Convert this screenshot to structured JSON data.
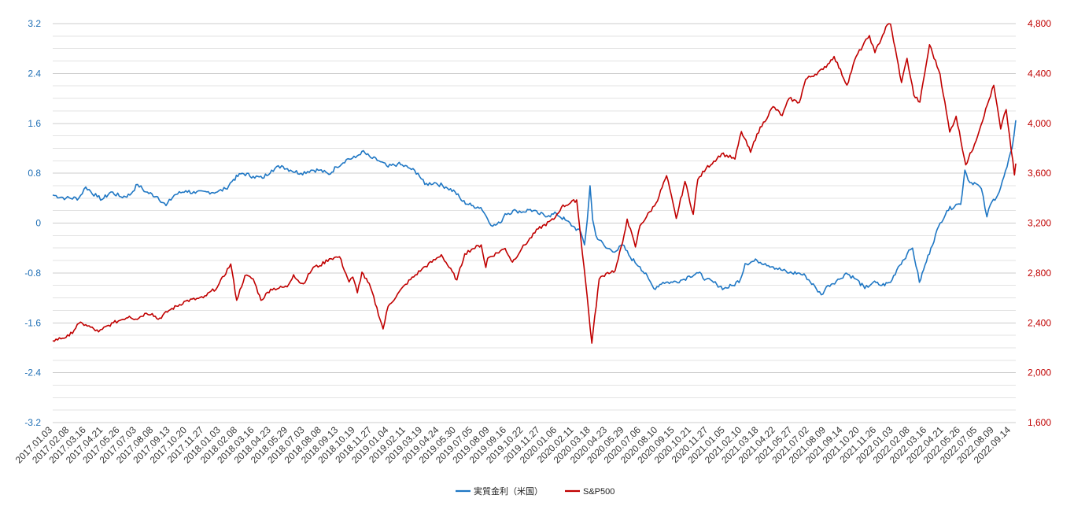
{
  "chart_data": {
    "type": "line",
    "title": "",
    "colors": {
      "left_series": "#1f77c4",
      "right_series": "#c00000",
      "left_axis_text": "#1f6fb5",
      "right_axis_text": "#c00000",
      "grid": "#cccccc",
      "grid_minor": "#e3e3e3"
    },
    "y_left": {
      "min": -3.2,
      "max": 3.2,
      "ticks": [
        "3.2",
        "2.4",
        "1.6",
        "0.8",
        "0",
        "-0.8",
        "-1.6",
        "-2.4",
        "-3.2"
      ]
    },
    "y_right": {
      "min": 1600,
      "max": 4800,
      "ticks": [
        "4,800",
        "4,400",
        "4,000",
        "3,600",
        "3,200",
        "2,800",
        "2,400",
        "2,000",
        "1,600"
      ]
    },
    "x_ticks": [
      "2017.01.03",
      "2017.02.08",
      "2017.03.16",
      "2017.04.21",
      "2017.05.26",
      "2017.07.03",
      "2017.08.08",
      "2017.09.13",
      "2017.10.20",
      "2017.11.27",
      "2018.01.03",
      "2018.02.08",
      "2018.03.16",
      "2018.04.23",
      "2018.05.29",
      "2018.07.03",
      "2018.08.08",
      "2018.09.13",
      "2018.10.19",
      "2018.11.27",
      "2019.01.04",
      "2019.02.11",
      "2019.03.19",
      "2019.04.24",
      "2019.05.30",
      "2019.07.05",
      "2019.08.09",
      "2019.09.16",
      "2019.10.22",
      "2019.11.27",
      "2020.01.06",
      "2020.02.11",
      "2020.03.18",
      "2020.04.23",
      "2020.05.29",
      "2020.07.06",
      "2020.08.10",
      "2020.09.15",
      "2020.10.21",
      "2020.11.27",
      "2021.01.05",
      "2021.02.10",
      "2021.03.18",
      "2021.04.22",
      "2021.05.27",
      "2021.07.02",
      "2021.08.09",
      "2021.09.14",
      "2021.10.20",
      "2021.11.26",
      "2022.01.03",
      "2022.02.08",
      "2022.03.16",
      "2022.04.21",
      "2022.05.26",
      "2022.07.05",
      "2022.08.09",
      "2022.09.14"
    ],
    "x_range": [
      "2017-01-03",
      "2022-10-03"
    ],
    "legend": {
      "position": "bottom",
      "items": [
        "実質金利（米国）",
        "S&P500"
      ]
    },
    "series": [
      {
        "name": "実質金利（米国）",
        "axis": "left",
        "points": [
          [
            "2017-01-03",
            0.45
          ],
          [
            "2017-02-01",
            0.4
          ],
          [
            "2017-03-01",
            0.4
          ],
          [
            "2017-03-16",
            0.58
          ],
          [
            "2017-04-10",
            0.42
          ],
          [
            "2017-04-21",
            0.38
          ],
          [
            "2017-05-10",
            0.5
          ],
          [
            "2017-06-01",
            0.42
          ],
          [
            "2017-06-20",
            0.45
          ],
          [
            "2017-07-07",
            0.62
          ],
          [
            "2017-07-25",
            0.5
          ],
          [
            "2017-08-20",
            0.42
          ],
          [
            "2017-09-07",
            0.28
          ],
          [
            "2017-09-25",
            0.45
          ],
          [
            "2017-10-20",
            0.52
          ],
          [
            "2017-11-10",
            0.48
          ],
          [
            "2017-12-05",
            0.5
          ],
          [
            "2017-12-28",
            0.5
          ],
          [
            "2018-01-15",
            0.55
          ],
          [
            "2018-02-01",
            0.7
          ],
          [
            "2018-02-20",
            0.8
          ],
          [
            "2018-03-16",
            0.75
          ],
          [
            "2018-04-05",
            0.72
          ],
          [
            "2018-04-25",
            0.85
          ],
          [
            "2018-05-17",
            0.92
          ],
          [
            "2018-06-05",
            0.85
          ],
          [
            "2018-06-28",
            0.8
          ],
          [
            "2018-07-20",
            0.85
          ],
          [
            "2018-08-08",
            0.85
          ],
          [
            "2018-08-28",
            0.78
          ],
          [
            "2018-09-13",
            0.9
          ],
          [
            "2018-10-05",
            1.02
          ],
          [
            "2018-10-25",
            1.05
          ],
          [
            "2018-11-08",
            1.15
          ],
          [
            "2018-11-27",
            1.05
          ],
          [
            "2018-12-15",
            1.0
          ],
          [
            "2019-01-04",
            0.9
          ],
          [
            "2019-01-25",
            0.95
          ],
          [
            "2019-02-20",
            0.88
          ],
          [
            "2019-03-10",
            0.8
          ],
          [
            "2019-03-25",
            0.62
          ],
          [
            "2019-04-15",
            0.65
          ],
          [
            "2019-05-10",
            0.58
          ],
          [
            "2019-05-30",
            0.5
          ],
          [
            "2019-06-15",
            0.35
          ],
          [
            "2019-07-05",
            0.28
          ],
          [
            "2019-07-25",
            0.25
          ],
          [
            "2019-08-05",
            0.12
          ],
          [
            "2019-08-20",
            -0.05
          ],
          [
            "2019-09-05",
            0.0
          ],
          [
            "2019-09-16",
            0.15
          ],
          [
            "2019-10-10",
            0.2
          ],
          [
            "2019-10-25",
            0.18
          ],
          [
            "2019-11-10",
            0.22
          ],
          [
            "2019-11-27",
            0.15
          ],
          [
            "2019-12-20",
            0.12
          ],
          [
            "2020-01-06",
            0.15
          ],
          [
            "2020-01-25",
            0.05
          ],
          [
            "2020-02-11",
            -0.05
          ],
          [
            "2020-02-28",
            -0.15
          ],
          [
            "2020-03-07",
            -0.35
          ],
          [
            "2020-03-13",
            0.05
          ],
          [
            "2020-03-19",
            0.6
          ],
          [
            "2020-03-25",
            0.05
          ],
          [
            "2020-04-01",
            -0.2
          ],
          [
            "2020-04-23",
            -0.4
          ],
          [
            "2020-05-15",
            -0.45
          ],
          [
            "2020-05-29",
            -0.35
          ],
          [
            "2020-06-15",
            -0.55
          ],
          [
            "2020-07-06",
            -0.7
          ],
          [
            "2020-07-25",
            -0.9
          ],
          [
            "2020-08-05",
            -1.05
          ],
          [
            "2020-08-25",
            -0.95
          ],
          [
            "2020-09-15",
            -0.95
          ],
          [
            "2020-10-10",
            -0.9
          ],
          [
            "2020-10-21",
            -0.85
          ],
          [
            "2020-11-10",
            -0.8
          ],
          [
            "2020-11-27",
            -0.9
          ],
          [
            "2020-12-20",
            -0.98
          ],
          [
            "2021-01-05",
            -1.05
          ],
          [
            "2021-01-25",
            -1.0
          ],
          [
            "2021-02-10",
            -0.9
          ],
          [
            "2021-02-20",
            -0.65
          ],
          [
            "2021-03-18",
            -0.6
          ],
          [
            "2021-04-05",
            -0.65
          ],
          [
            "2021-04-22",
            -0.7
          ],
          [
            "2021-05-27",
            -0.8
          ],
          [
            "2021-06-15",
            -0.8
          ],
          [
            "2021-07-02",
            -0.85
          ],
          [
            "2021-07-25",
            -1.05
          ],
          [
            "2021-08-05",
            -1.15
          ],
          [
            "2021-08-20",
            -1.0
          ],
          [
            "2021-09-14",
            -0.9
          ],
          [
            "2021-09-28",
            -0.8
          ],
          [
            "2021-10-20",
            -0.9
          ],
          [
            "2021-11-08",
            -1.05
          ],
          [
            "2021-11-26",
            -0.95
          ],
          [
            "2021-12-15",
            -1.0
          ],
          [
            "2022-01-03",
            -0.95
          ],
          [
            "2022-01-20",
            -0.7
          ],
          [
            "2022-02-08",
            -0.5
          ],
          [
            "2022-02-20",
            -0.4
          ],
          [
            "2022-03-07",
            -0.95
          ],
          [
            "2022-03-16",
            -0.75
          ],
          [
            "2022-04-01",
            -0.4
          ],
          [
            "2022-04-21",
            0.0
          ],
          [
            "2022-05-06",
            0.2
          ],
          [
            "2022-05-26",
            0.3
          ],
          [
            "2022-06-05",
            0.3
          ],
          [
            "2022-06-14",
            0.85
          ],
          [
            "2022-06-25",
            0.65
          ],
          [
            "2022-07-05",
            0.65
          ],
          [
            "2022-07-20",
            0.55
          ],
          [
            "2022-08-01",
            0.1
          ],
          [
            "2022-08-09",
            0.3
          ],
          [
            "2022-08-28",
            0.5
          ],
          [
            "2022-09-14",
            0.9
          ],
          [
            "2022-09-25",
            1.2
          ],
          [
            "2022-10-03",
            1.65
          ]
        ]
      },
      {
        "name": "S&P500",
        "axis": "right",
        "points": [
          [
            "2017-01-03",
            2257
          ],
          [
            "2017-02-08",
            2295
          ],
          [
            "2017-03-01",
            2395
          ],
          [
            "2017-03-16",
            2385
          ],
          [
            "2017-04-13",
            2328
          ],
          [
            "2017-04-21",
            2348
          ],
          [
            "2017-05-15",
            2400
          ],
          [
            "2017-05-26",
            2415
          ],
          [
            "2017-06-19",
            2453
          ],
          [
            "2017-07-03",
            2430
          ],
          [
            "2017-07-26",
            2477
          ],
          [
            "2017-08-08",
            2474
          ],
          [
            "2017-08-21",
            2428
          ],
          [
            "2017-09-13",
            2498
          ],
          [
            "2017-10-20",
            2575
          ],
          [
            "2017-11-27",
            2601
          ],
          [
            "2017-12-28",
            2687
          ],
          [
            "2018-01-26",
            2872
          ],
          [
            "2018-02-08",
            2581
          ],
          [
            "2018-02-26",
            2779
          ],
          [
            "2018-03-16",
            2752
          ],
          [
            "2018-04-02",
            2581
          ],
          [
            "2018-04-23",
            2670
          ],
          [
            "2018-05-29",
            2689
          ],
          [
            "2018-06-12",
            2786
          ],
          [
            "2018-06-28",
            2716
          ],
          [
            "2018-07-03",
            2713
          ],
          [
            "2018-07-25",
            2846
          ],
          [
            "2018-08-08",
            2858
          ],
          [
            "2018-08-29",
            2914
          ],
          [
            "2018-09-20",
            2930
          ],
          [
            "2018-10-11",
            2728
          ],
          [
            "2018-10-19",
            2767
          ],
          [
            "2018-10-29",
            2641
          ],
          [
            "2018-11-08",
            2806
          ],
          [
            "2018-11-27",
            2682
          ],
          [
            "2018-12-24",
            2351
          ],
          [
            "2019-01-04",
            2532
          ],
          [
            "2019-02-11",
            2709
          ],
          [
            "2019-03-19",
            2832
          ],
          [
            "2019-04-24",
            2927
          ],
          [
            "2019-04-30",
            2946
          ],
          [
            "2019-06-03",
            2744
          ],
          [
            "2019-06-20",
            2954
          ],
          [
            "2019-07-05",
            2990
          ],
          [
            "2019-07-26",
            3025
          ],
          [
            "2019-08-05",
            2844
          ],
          [
            "2019-08-09",
            2918
          ],
          [
            "2019-09-16",
            2997
          ],
          [
            "2019-10-02",
            2887
          ],
          [
            "2019-10-22",
            2995
          ],
          [
            "2019-11-27",
            3153
          ],
          [
            "2019-12-31",
            3230
          ],
          [
            "2020-01-17",
            3329
          ],
          [
            "2020-02-19",
            3386
          ],
          [
            "2020-03-09",
            2746
          ],
          [
            "2020-03-23",
            2237
          ],
          [
            "2020-04-08",
            2750
          ],
          [
            "2020-04-23",
            2797
          ],
          [
            "2020-05-13",
            2820
          ],
          [
            "2020-05-29",
            3044
          ],
          [
            "2020-06-08",
            3232
          ],
          [
            "2020-06-26",
            3009
          ],
          [
            "2020-07-06",
            3179
          ],
          [
            "2020-08-10",
            3360
          ],
          [
            "2020-09-02",
            3580
          ],
          [
            "2020-09-23",
            3237
          ],
          [
            "2020-10-12",
            3534
          ],
          [
            "2020-10-30",
            3270
          ],
          [
            "2020-11-09",
            3550
          ],
          [
            "2020-11-27",
            3638
          ],
          [
            "2020-12-31",
            3756
          ],
          [
            "2021-01-29",
            3714
          ],
          [
            "2021-02-12",
            3934
          ],
          [
            "2021-03-04",
            3768
          ],
          [
            "2021-03-18",
            3915
          ],
          [
            "2021-04-22",
            4134
          ],
          [
            "2021-05-12",
            4063
          ],
          [
            "2021-05-27",
            4200
          ],
          [
            "2021-06-18",
            4166
          ],
          [
            "2021-07-02",
            4352
          ],
          [
            "2021-08-09",
            4432
          ],
          [
            "2021-09-02",
            4537
          ],
          [
            "2021-09-30",
            4307
          ],
          [
            "2021-10-20",
            4536
          ],
          [
            "2021-11-18",
            4704
          ],
          [
            "2021-11-30",
            4567
          ],
          [
            "2021-12-27",
            4791
          ],
          [
            "2022-01-03",
            4796
          ],
          [
            "2022-01-27",
            4327
          ],
          [
            "2022-02-08",
            4521
          ],
          [
            "2022-02-23",
            4225
          ],
          [
            "2022-03-08",
            4170
          ],
          [
            "2022-03-29",
            4631
          ],
          [
            "2022-04-21",
            4394
          ],
          [
            "2022-05-12",
            3930
          ],
          [
            "2022-05-26",
            4057
          ],
          [
            "2022-06-16",
            3667
          ],
          [
            "2022-07-05",
            3831
          ],
          [
            "2022-08-16",
            4305
          ],
          [
            "2022-08-31",
            3955
          ],
          [
            "2022-09-12",
            4110
          ],
          [
            "2022-09-30",
            3586
          ],
          [
            "2022-10-03",
            3678
          ]
        ]
      }
    ]
  }
}
